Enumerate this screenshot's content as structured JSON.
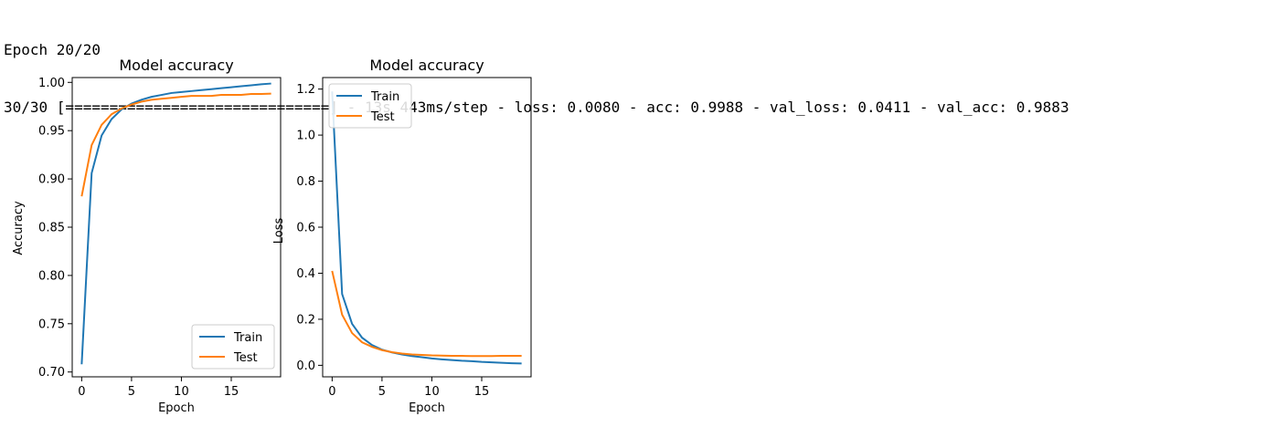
{
  "console": {
    "line1": "Epoch 20/20",
    "line2": "30/30 [==============================] - 13s 443ms/step - loss: 0.0080 - acc: 0.9988 - val_loss: 0.0411 - val_acc: 0.9883"
  },
  "colors": {
    "train": "#1f77b4",
    "test": "#ff7f0e"
  },
  "chart_data": [
    {
      "type": "line",
      "title": "Model accuracy",
      "xlabel": "Epoch",
      "ylabel": "Accuracy",
      "xlim": [
        -0.95,
        19.95
      ],
      "ylim": [
        0.695,
        1.005
      ],
      "xticks": [
        0,
        5,
        10,
        15
      ],
      "yticks": [
        0.7,
        0.75,
        0.8,
        0.85,
        0.9,
        0.95,
        1.0
      ],
      "ytick_labels": [
        "0.70",
        "0.75",
        "0.80",
        "0.85",
        "0.90",
        "0.95",
        "1.00"
      ],
      "grid": false,
      "legend_position": "lower-right",
      "x": [
        0,
        1,
        2,
        3,
        4,
        5,
        6,
        7,
        8,
        9,
        10,
        11,
        12,
        13,
        14,
        15,
        16,
        17,
        18,
        19
      ],
      "series": [
        {
          "name": "Train",
          "values": [
            0.708,
            0.906,
            0.945,
            0.962,
            0.972,
            0.978,
            0.982,
            0.985,
            0.987,
            0.989,
            0.99,
            0.991,
            0.992,
            0.993,
            0.994,
            0.995,
            0.996,
            0.997,
            0.998,
            0.9988
          ]
        },
        {
          "name": "Test",
          "values": [
            0.882,
            0.935,
            0.956,
            0.967,
            0.973,
            0.977,
            0.98,
            0.982,
            0.983,
            0.984,
            0.985,
            0.986,
            0.986,
            0.986,
            0.987,
            0.987,
            0.987,
            0.988,
            0.988,
            0.9883
          ]
        }
      ]
    },
    {
      "type": "line",
      "title": "Model accuracy",
      "xlabel": "Epoch",
      "ylabel": "Loss",
      "xlim": [
        -0.95,
        19.95
      ],
      "ylim": [
        -0.05,
        1.25
      ],
      "xticks": [
        0,
        5,
        10,
        15
      ],
      "yticks": [
        0.0,
        0.2,
        0.4,
        0.6,
        0.8,
        1.0,
        1.2
      ],
      "ytick_labels": [
        "0.0",
        "0.2",
        "0.4",
        "0.6",
        "0.8",
        "1.0",
        "1.2"
      ],
      "grid": false,
      "legend_position": "upper-left",
      "x": [
        0,
        1,
        2,
        3,
        4,
        5,
        6,
        7,
        8,
        9,
        10,
        11,
        12,
        13,
        14,
        15,
        16,
        17,
        18,
        19
      ],
      "series": [
        {
          "name": "Train",
          "values": [
            1.19,
            0.31,
            0.18,
            0.12,
            0.088,
            0.068,
            0.056,
            0.047,
            0.04,
            0.035,
            0.03,
            0.026,
            0.023,
            0.02,
            0.018,
            0.015,
            0.013,
            0.011,
            0.009,
            0.008
          ]
        },
        {
          "name": "Test",
          "values": [
            0.41,
            0.22,
            0.14,
            0.1,
            0.08,
            0.066,
            0.057,
            0.051,
            0.047,
            0.045,
            0.043,
            0.042,
            0.041,
            0.041,
            0.04,
            0.04,
            0.04,
            0.041,
            0.041,
            0.0411
          ]
        }
      ]
    }
  ]
}
